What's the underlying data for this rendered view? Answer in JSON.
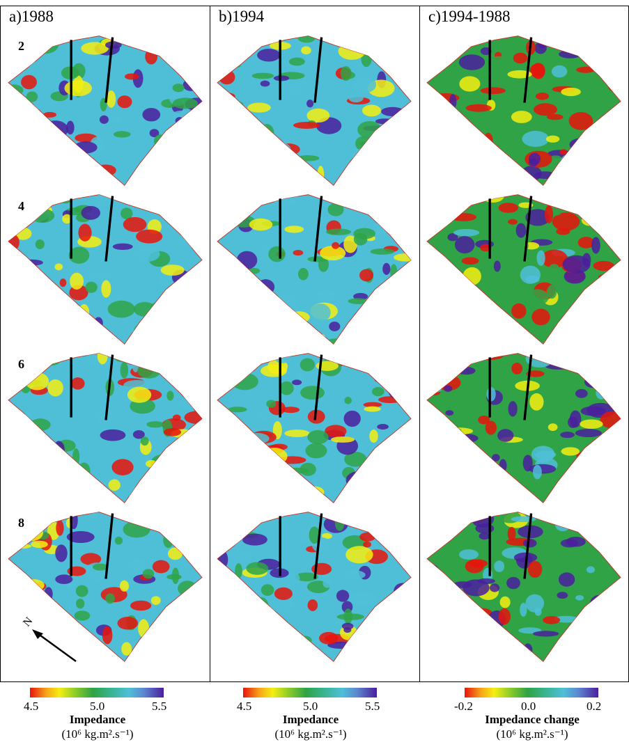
{
  "columns": [
    {
      "title": "a)1988"
    },
    {
      "title": "b)1994"
    },
    {
      "title": "c)1994-1988"
    }
  ],
  "rows": [
    {
      "label": "2"
    },
    {
      "label": "4"
    },
    {
      "label": "6"
    },
    {
      "label": "8"
    }
  ],
  "north_arrow": {
    "label": "N"
  },
  "colorbars": [
    {
      "ticks": [
        "4.5",
        "5.0",
        "5.5"
      ],
      "title": "Impedance",
      "unit": "(10⁶ kg.m².s⁻¹)"
    },
    {
      "ticks": [
        "4.5",
        "5.0",
        "5.5"
      ],
      "title": "Impedance",
      "unit": "(10⁶ kg.m².s⁻¹)"
    },
    {
      "ticks": [
        "-0.2",
        "0.0",
        "0.2"
      ],
      "title": "Impedance change",
      "unit": "(10⁶ kg.m².s⁻¹)"
    }
  ],
  "colors": {
    "red": "#e8140c",
    "yellow": "#f4ee12",
    "green": "#2fa346",
    "cyan": "#4fbfd8",
    "purple": "#4a1e9e"
  }
}
